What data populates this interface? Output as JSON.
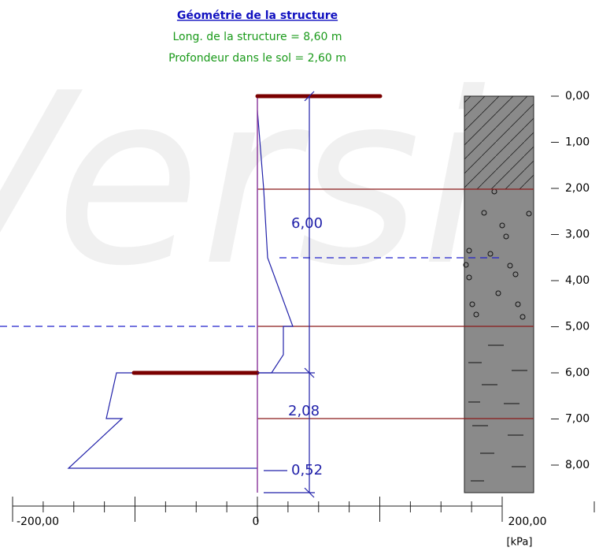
{
  "header": {
    "title": "Géométrie de la structure",
    "lines": [
      "Long. de la structure = 8,60 m",
      "Profondeur dans le sol = 2,60 m"
    ]
  },
  "watermark": "Versi",
  "depth_labels": [
    "0,00",
    "1,00",
    "2,00",
    "3,00",
    "4,00",
    "5,00",
    "6,00",
    "7,00",
    "8,00"
  ],
  "dimensions": [
    "6,00",
    "2,08",
    "0,52"
  ],
  "axis": {
    "labels": [
      "-200,00",
      "0",
      "200,00"
    ],
    "unit": "[kPa]"
  }
}
